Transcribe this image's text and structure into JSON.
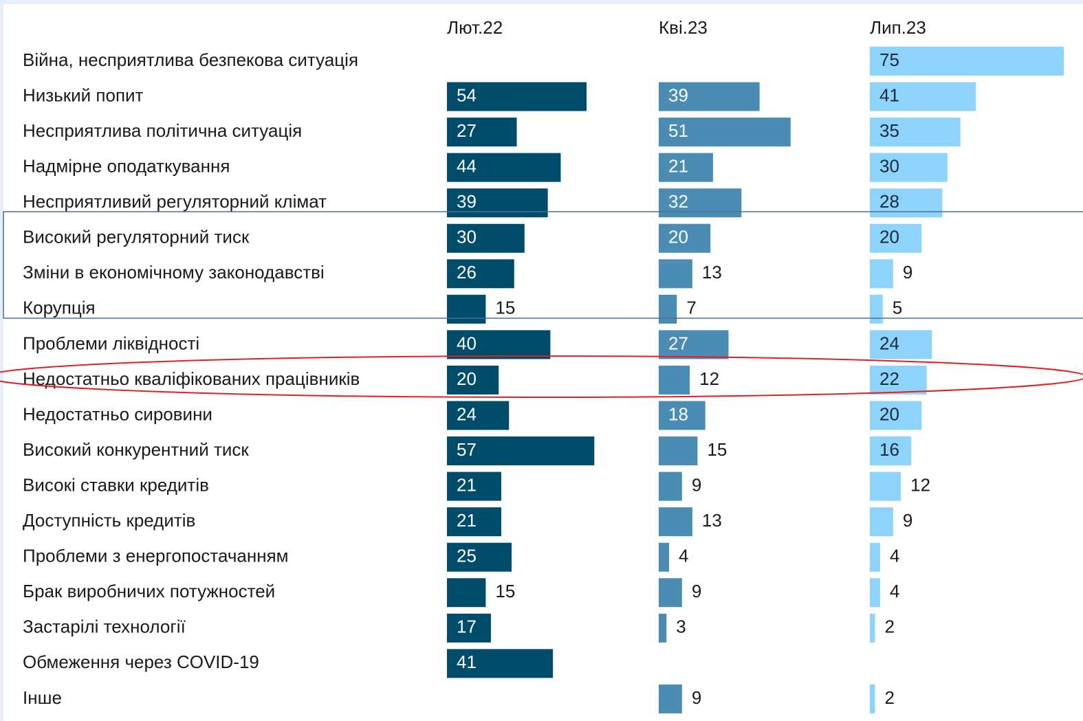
{
  "chart_data": {
    "type": "bar",
    "orientation": "horizontal",
    "categories": [
      "Війна, несприятлива безпекова ситуація",
      "Низький попит",
      "Несприятлива політична ситуація",
      "Надмірне оподаткування",
      "Несприятливий регуляторний клімат",
      "Високий регуляторний тиск",
      "Зміни в економічному законодавстві",
      "Корупція",
      "Проблеми ліквідності",
      "Недостатньо кваліфікованих працівників",
      "Недостатньо сировини",
      "Високий конкурентний тиск",
      "Високі ставки кредитів",
      "Доступність кредитів",
      "Проблеми з енергопостачанням",
      "Брак виробничих потужностей",
      "Застарілі технології",
      "Обмеження через COVID-19",
      "Інше"
    ],
    "series": [
      {
        "name": "Лют.22",
        "color": "#004d6b",
        "values": [
          null,
          54,
          27,
          44,
          39,
          30,
          26,
          15,
          40,
          20,
          24,
          57,
          21,
          21,
          25,
          15,
          17,
          41,
          null
        ]
      },
      {
        "name": "Кві.23",
        "color": "#4a8cb4",
        "values": [
          null,
          39,
          51,
          21,
          32,
          20,
          13,
          7,
          27,
          12,
          18,
          15,
          9,
          13,
          4,
          9,
          3,
          null,
          9
        ]
      },
      {
        "name": "Лип.23",
        "color": "#8ed3fb",
        "values": [
          75,
          41,
          35,
          30,
          28,
          20,
          9,
          5,
          24,
          22,
          20,
          16,
          12,
          9,
          4,
          4,
          2,
          null,
          2
        ]
      }
    ]
  }
}
